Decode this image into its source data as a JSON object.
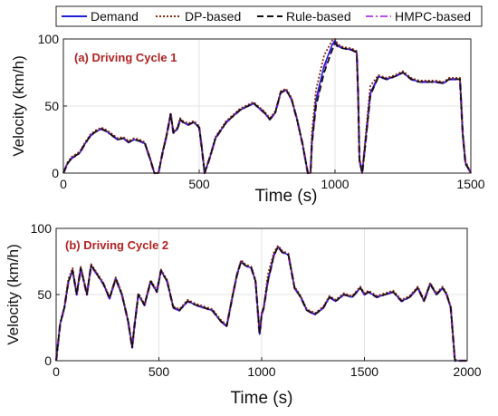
{
  "legend": {
    "placement": "top",
    "entries": [
      {
        "label": "Demand",
        "color": "#1f1fd6",
        "dash": "solid"
      },
      {
        "label": "DP-based",
        "color": "#8b2a0a",
        "dash": "dotted"
      },
      {
        "label": "Rule-based",
        "color": "#111111",
        "dash": "dashed"
      },
      {
        "label": "HMPC-based",
        "color": "#b84cf0",
        "dash": "dashdot"
      }
    ]
  },
  "chart_data": [
    {
      "type": "line",
      "annotation": "(a) Driving Cycle 1",
      "xlabel": "Time (s)",
      "ylabel": "Velocity (km/h)",
      "xlim": [
        0,
        1500
      ],
      "ylim": [
        0,
        100
      ],
      "xticks": [
        "0",
        "500",
        "1000",
        "1500"
      ],
      "yticks": [
        "0",
        "50",
        "100"
      ],
      "grid": true,
      "series_names": [
        "Demand",
        "DP-based",
        "Rule-based",
        "HMPC-based"
      ],
      "x": [
        0,
        15,
        30,
        45,
        60,
        80,
        100,
        120,
        140,
        160,
        180,
        200,
        220,
        240,
        260,
        280,
        300,
        320,
        335,
        350,
        365,
        380,
        395,
        405,
        420,
        430,
        440,
        460,
        480,
        500,
        510,
        520,
        540,
        560,
        600,
        650,
        700,
        740,
        760,
        780,
        800,
        820,
        840,
        860,
        880,
        900,
        910,
        915,
        930,
        960,
        990,
        1000,
        1010,
        1030,
        1060,
        1080,
        1085,
        1090,
        1100,
        1110,
        1130,
        1160,
        1190,
        1220,
        1250,
        1280,
        1310,
        1340,
        1370,
        1400,
        1420,
        1440,
        1460,
        1470,
        1480,
        1500
      ],
      "series": [
        {
          "name": "Demand",
          "values": [
            0,
            7,
            11,
            13,
            15,
            22,
            28,
            31,
            33,
            31,
            28,
            25,
            26,
            23,
            25,
            24,
            22,
            10,
            0,
            0,
            15,
            28,
            44,
            30,
            33,
            40,
            38,
            36,
            38,
            34,
            18,
            0,
            12,
            26,
            38,
            47,
            52,
            45,
            40,
            45,
            60,
            62,
            55,
            40,
            22,
            0,
            0,
            25,
            55,
            80,
            96,
            99,
            95,
            93,
            92,
            90,
            60,
            10,
            0,
            20,
            60,
            72,
            70,
            72,
            75,
            70,
            68,
            68,
            68,
            67,
            70,
            70,
            70,
            30,
            8,
            0
          ]
        },
        {
          "name": "DP-based",
          "values": [
            0,
            8,
            12,
            14,
            16,
            23,
            29,
            32,
            34,
            32,
            29,
            26,
            27,
            24,
            26,
            25,
            23,
            11,
            0,
            0,
            16,
            29,
            45,
            31,
            34,
            41,
            39,
            37,
            39,
            35,
            19,
            0,
            13,
            27,
            39,
            48,
            53,
            46,
            41,
            46,
            61,
            63,
            56,
            41,
            23,
            0,
            0,
            30,
            62,
            88,
            99,
            100,
            96,
            94,
            93,
            91,
            61,
            11,
            0,
            22,
            65,
            73,
            71,
            73,
            76,
            71,
            69,
            69,
            69,
            68,
            71,
            71,
            71,
            31,
            9,
            0
          ]
        },
        {
          "name": "Rule-based",
          "values": [
            0,
            7,
            11,
            13,
            15,
            22,
            28,
            31,
            33,
            31,
            28,
            25,
            26,
            23,
            25,
            24,
            22,
            10,
            0,
            0,
            15,
            28,
            44,
            30,
            33,
            40,
            38,
            36,
            38,
            34,
            18,
            0,
            12,
            26,
            38,
            47,
            52,
            45,
            40,
            45,
            60,
            62,
            55,
            40,
            22,
            0,
            0,
            22,
            50,
            75,
            92,
            97,
            94,
            93,
            92,
            90,
            58,
            9,
            0,
            18,
            58,
            72,
            70,
            72,
            75,
            70,
            68,
            68,
            68,
            67,
            70,
            70,
            70,
            29,
            7,
            0
          ]
        },
        {
          "name": "HMPC-based",
          "values": [
            0,
            7,
            11,
            13,
            15,
            22,
            28,
            31,
            33,
            31,
            28,
            25,
            26,
            23,
            25,
            24,
            22,
            10,
            0,
            0,
            15,
            28,
            44,
            30,
            33,
            40,
            38,
            36,
            38,
            34,
            18,
            0,
            12,
            26,
            38,
            47,
            52,
            45,
            40,
            45,
            60,
            62,
            55,
            40,
            22,
            0,
            0,
            23,
            52,
            78,
            94,
            97,
            95,
            93,
            92,
            90,
            59,
            10,
            0,
            19,
            59,
            72,
            70,
            72,
            75,
            70,
            68,
            68,
            68,
            67,
            70,
            70,
            70,
            30,
            8,
            0
          ]
        }
      ]
    },
    {
      "type": "line",
      "annotation": "(b) Driving Cycle 2",
      "xlabel": "Time (s)",
      "ylabel": "Velocity (km/h)",
      "xlim": [
        0,
        2000
      ],
      "ylim": [
        0,
        100
      ],
      "xticks": [
        "0",
        "500",
        "1000",
        "1500",
        "2000"
      ],
      "yticks": [
        "0",
        "50",
        "100"
      ],
      "grid": true,
      "series_names": [
        "Demand",
        "DP-based",
        "Rule-based",
        "HMPC-based"
      ],
      "x": [
        0,
        20,
        40,
        60,
        80,
        100,
        120,
        150,
        170,
        200,
        230,
        260,
        290,
        320,
        350,
        370,
        380,
        400,
        430,
        460,
        490,
        510,
        540,
        570,
        600,
        640,
        680,
        720,
        760,
        800,
        830,
        860,
        880,
        900,
        920,
        950,
        970,
        990,
        1000,
        1010,
        1030,
        1060,
        1080,
        1100,
        1130,
        1160,
        1190,
        1220,
        1260,
        1300,
        1330,
        1360,
        1400,
        1440,
        1480,
        1500,
        1520,
        1560,
        1600,
        1640,
        1680,
        1720,
        1760,
        1790,
        1820,
        1850,
        1880,
        1900,
        1920,
        1930,
        1940,
        1960,
        1980,
        2000
      ],
      "series": [
        {
          "name": "Demand",
          "values": [
            0,
            28,
            40,
            60,
            68,
            50,
            70,
            50,
            72,
            65,
            58,
            47,
            62,
            50,
            30,
            10,
            25,
            50,
            42,
            60,
            52,
            68,
            60,
            40,
            38,
            45,
            42,
            40,
            38,
            30,
            26,
            50,
            65,
            75,
            72,
            70,
            60,
            20,
            35,
            40,
            60,
            80,
            86,
            82,
            80,
            55,
            48,
            38,
            35,
            40,
            48,
            45,
            50,
            48,
            55,
            50,
            52,
            48,
            50,
            52,
            45,
            48,
            55,
            45,
            58,
            50,
            55,
            50,
            40,
            20,
            0,
            0,
            0,
            0
          ]
        },
        {
          "name": "DP-based",
          "values": [
            0,
            29,
            41,
            62,
            70,
            51,
            71,
            51,
            73,
            66,
            59,
            48,
            63,
            51,
            31,
            11,
            26,
            51,
            43,
            61,
            53,
            69,
            61,
            41,
            39,
            46,
            43,
            41,
            39,
            31,
            27,
            51,
            66,
            76,
            73,
            71,
            61,
            21,
            36,
            41,
            65,
            82,
            87,
            83,
            81,
            56,
            49,
            39,
            36,
            41,
            49,
            46,
            51,
            49,
            56,
            51,
            53,
            49,
            51,
            53,
            46,
            49,
            56,
            46,
            59,
            51,
            56,
            51,
            41,
            21,
            1,
            0,
            0,
            0
          ]
        },
        {
          "name": "Rule-based",
          "values": [
            0,
            28,
            40,
            60,
            68,
            50,
            70,
            50,
            72,
            65,
            58,
            47,
            62,
            50,
            30,
            10,
            25,
            50,
            42,
            60,
            52,
            68,
            60,
            40,
            38,
            45,
            42,
            40,
            38,
            30,
            26,
            50,
            65,
            75,
            72,
            70,
            60,
            20,
            35,
            40,
            60,
            80,
            86,
            82,
            80,
            55,
            48,
            38,
            35,
            40,
            48,
            45,
            50,
            48,
            55,
            50,
            52,
            48,
            50,
            52,
            45,
            48,
            55,
            45,
            58,
            50,
            55,
            50,
            40,
            20,
            0,
            0,
            0,
            0
          ]
        },
        {
          "name": "HMPC-based",
          "values": [
            0,
            28,
            40,
            60,
            68,
            50,
            70,
            50,
            72,
            65,
            58,
            47,
            62,
            50,
            30,
            10,
            25,
            50,
            42,
            60,
            52,
            68,
            60,
            40,
            38,
            45,
            42,
            40,
            38,
            30,
            26,
            50,
            65,
            75,
            72,
            70,
            60,
            20,
            35,
            40,
            60,
            80,
            86,
            82,
            80,
            55,
            48,
            38,
            35,
            40,
            48,
            45,
            50,
            48,
            55,
            50,
            52,
            48,
            50,
            52,
            45,
            48,
            55,
            45,
            58,
            50,
            55,
            50,
            40,
            20,
            0,
            0,
            0,
            0
          ]
        }
      ]
    }
  ]
}
